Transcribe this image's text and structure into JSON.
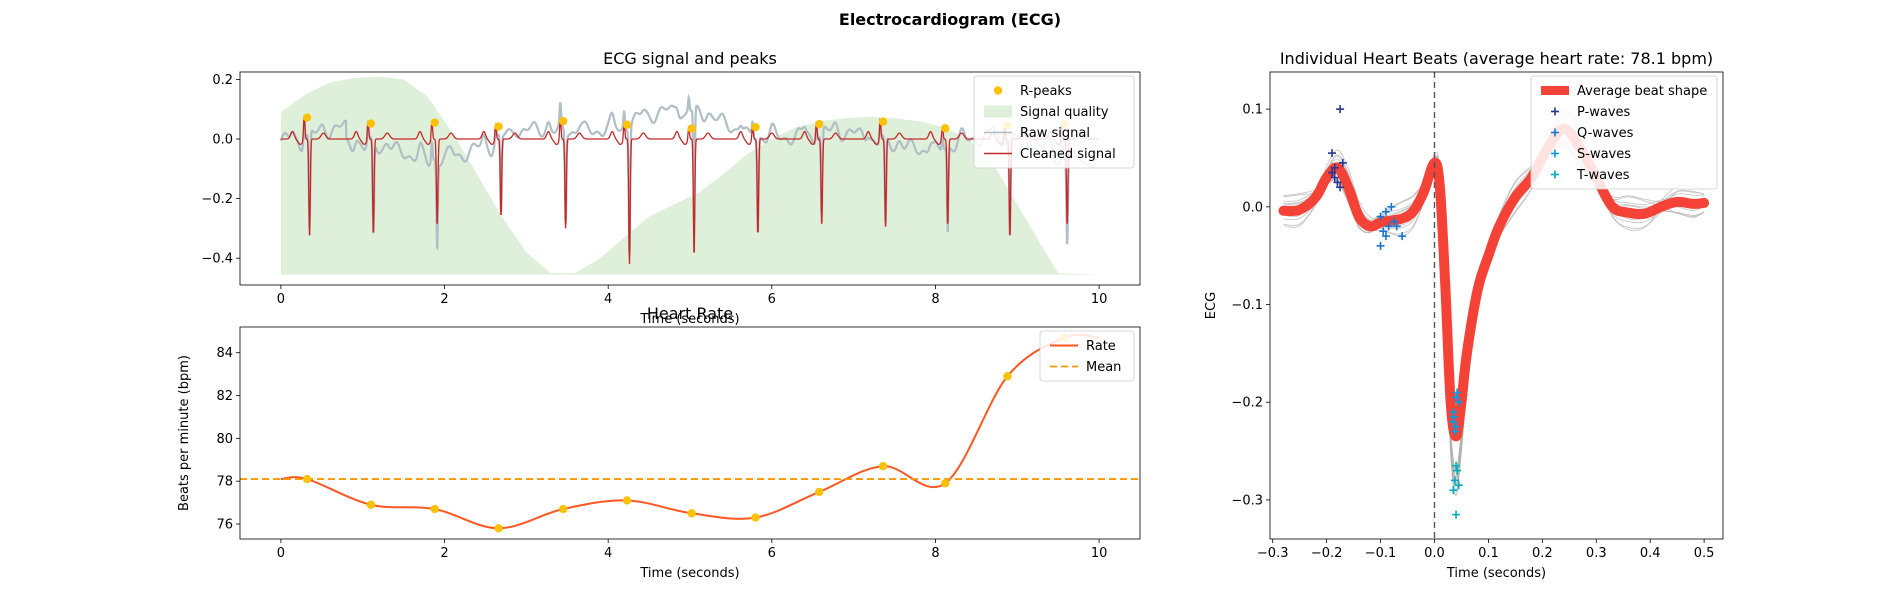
{
  "figure": {
    "title": "Electrocardiogram (ECG)"
  },
  "colors": {
    "rpeak": "#FFC107",
    "quality": "#DFF0DA",
    "raw": "#B0BEC5",
    "cleaned": "#C62828",
    "rate": "#FF5722",
    "mean": "#FF9800",
    "avg_beat": "#F44336",
    "p_wave": "#283593",
    "q_wave": "#1976D2",
    "s_wave": "#039BE5",
    "t_wave": "#00ACC1",
    "beat_lines": "#B0B0B0",
    "vline": "#555555"
  },
  "chart_data": [
    {
      "id": "ecg_signal",
      "type": "line",
      "title": "ECG signal and peaks",
      "xlabel": "Time (seconds)",
      "ylabel": "",
      "xlim": [
        -0.5,
        10.5
      ],
      "ylim": [
        -0.49,
        0.225
      ],
      "xticks": [
        0,
        2,
        4,
        6,
        8,
        10
      ],
      "yticks": [
        0.2,
        0.0,
        -0.2,
        -0.4
      ],
      "ytick_labels": [
        "0.2",
        "0.0",
        "−0.2",
        "−0.4"
      ],
      "legend": [
        "R-peaks",
        "Signal quality",
        "Raw signal",
        "Cleaned signal"
      ],
      "legend_position": "top-right",
      "r_peaks": {
        "x": [
          0.32,
          1.1,
          1.88,
          2.66,
          3.45,
          4.23,
          5.02,
          5.8,
          6.58,
          7.36,
          8.12,
          8.88,
          9.58
        ],
        "y": [
          0.072,
          0.052,
          0.055,
          0.042,
          0.06,
          0.048,
          0.035,
          0.04,
          0.05,
          0.058,
          0.036,
          0.045,
          0.05
        ]
      },
      "quality_curve": {
        "x": [
          0,
          0.3,
          0.6,
          0.9,
          1.2,
          1.5,
          1.8,
          2.1,
          2.4,
          2.7,
          3.0,
          3.3,
          3.6,
          3.9,
          4.2,
          4.5,
          4.8,
          5.1,
          5.4,
          5.7,
          6.0,
          6.3,
          6.6,
          6.9,
          7.2,
          7.5,
          7.8,
          8.1,
          8.4,
          8.7,
          9.0,
          9.3,
          9.5,
          10.0
        ],
        "y": [
          0.09,
          0.15,
          0.19,
          0.205,
          0.21,
          0.2,
          0.14,
          0.02,
          -0.12,
          -0.26,
          -0.38,
          -0.45,
          -0.45,
          -0.4,
          -0.33,
          -0.26,
          -0.22,
          -0.18,
          -0.12,
          -0.05,
          0.0,
          0.04,
          0.06,
          0.07,
          0.075,
          0.07,
          0.06,
          0.04,
          0.0,
          -0.08,
          -0.22,
          -0.36,
          -0.45,
          -0.455
        ]
      },
      "baseline": -0.455,
      "beat_amplitude": [
        -0.31,
        -0.3,
        -0.27,
        -0.24,
        -0.28,
        -0.4,
        -0.37,
        -0.3,
        -0.27,
        -0.28,
        -0.27,
        -0.31,
        -0.27
      ]
    },
    {
      "id": "heart_rate",
      "type": "line",
      "title": "Heart Rate",
      "xlabel": "Time (seconds)",
      "ylabel": "Beats per minute (bpm)",
      "xlim": [
        -0.5,
        10.5
      ],
      "ylim": [
        75.3,
        85.2
      ],
      "xticks": [
        0,
        2,
        4,
        6,
        8,
        10
      ],
      "yticks": [
        76,
        78,
        80,
        82,
        84
      ],
      "legend": [
        "Rate",
        "Mean"
      ],
      "legend_position": "top-right",
      "mean": 78.1,
      "rate_points": {
        "x": [
          0.32,
          1.1,
          1.88,
          2.66,
          3.45,
          4.23,
          5.02,
          5.8,
          6.58,
          7.36,
          8.12,
          8.88,
          9.58
        ],
        "y": [
          78.1,
          76.9,
          76.7,
          75.8,
          76.7,
          77.1,
          76.5,
          76.3,
          77.5,
          78.7,
          77.9,
          82.9,
          84.7
        ]
      }
    },
    {
      "id": "heart_beats",
      "type": "line",
      "title": "Individual Heart Beats (average heart rate: 78.1 bpm)",
      "xlabel": "Time (seconds)",
      "ylabel": "ECG",
      "xlim": [
        -0.305,
        0.535
      ],
      "ylim": [
        -0.34,
        0.138
      ],
      "xticks": [
        -0.3,
        -0.2,
        -0.1,
        0.0,
        0.1,
        0.2,
        0.3,
        0.4,
        0.5
      ],
      "xtick_labels": [
        "−0.3",
        "−0.2",
        "−0.1",
        "0.0",
        "0.1",
        "0.2",
        "0.3",
        "0.4",
        "0.5"
      ],
      "yticks": [
        0.1,
        0.0,
        -0.1,
        -0.2,
        -0.3
      ],
      "ytick_labels": [
        "0.1",
        "0.0",
        "−0.1",
        "−0.2",
        "−0.3"
      ],
      "legend": [
        "Average beat shape",
        "P-waves",
        "Q-waves",
        "S-waves",
        "T-waves"
      ],
      "legend_position": "top-right",
      "average_beat": {
        "x": [
          -0.28,
          -0.25,
          -0.22,
          -0.2,
          -0.18,
          -0.16,
          -0.14,
          -0.12,
          -0.1,
          -0.08,
          -0.06,
          -0.04,
          -0.02,
          0.0,
          0.01,
          0.02,
          0.03,
          0.04,
          0.05,
          0.06,
          0.08,
          0.1,
          0.12,
          0.15,
          0.18,
          0.21,
          0.24,
          0.27,
          0.3,
          0.33,
          0.36,
          0.39,
          0.42,
          0.45,
          0.48,
          0.5
        ],
        "y": [
          -0.004,
          -0.003,
          0.01,
          0.03,
          0.04,
          0.02,
          -0.01,
          -0.02,
          -0.016,
          -0.014,
          -0.012,
          -0.005,
          0.015,
          0.045,
          0.02,
          -0.08,
          -0.2,
          -0.235,
          -0.2,
          -0.15,
          -0.085,
          -0.05,
          -0.02,
          0.01,
          0.03,
          0.06,
          0.08,
          0.06,
          0.03,
          0.0,
          -0.006,
          -0.007,
          0.0,
          0.005,
          0.003,
          0.004
        ]
      },
      "p_waves": {
        "x": [
          -0.19,
          -0.185,
          -0.18,
          -0.175,
          -0.17,
          -0.19,
          -0.185,
          -0.175
        ],
        "y": [
          0.055,
          0.04,
          0.025,
          0.1,
          0.045,
          0.035,
          0.03,
          0.02
        ]
      },
      "q_waves": {
        "x": [
          -0.1,
          -0.095,
          -0.09,
          -0.085,
          -0.08,
          -0.075,
          -0.07,
          -0.06,
          -0.1,
          -0.09
        ],
        "y": [
          -0.04,
          -0.025,
          -0.005,
          -0.02,
          0.0,
          -0.015,
          -0.02,
          -0.03,
          -0.01,
          -0.03
        ]
      },
      "s_waves": {
        "x": [
          0.035,
          0.04,
          0.04,
          0.045,
          0.035,
          0.042,
          0.038,
          0.036
        ],
        "y": [
          -0.21,
          -0.225,
          -0.195,
          -0.2,
          -0.22,
          -0.19,
          -0.23,
          -0.215
        ]
      },
      "t_waves": {
        "x": [
          0.04,
          0.045,
          0.04,
          0.035,
          0.042,
          0.038
        ],
        "y": [
          -0.315,
          -0.285,
          -0.265,
          -0.29,
          -0.27,
          -0.28
        ]
      }
    }
  ]
}
